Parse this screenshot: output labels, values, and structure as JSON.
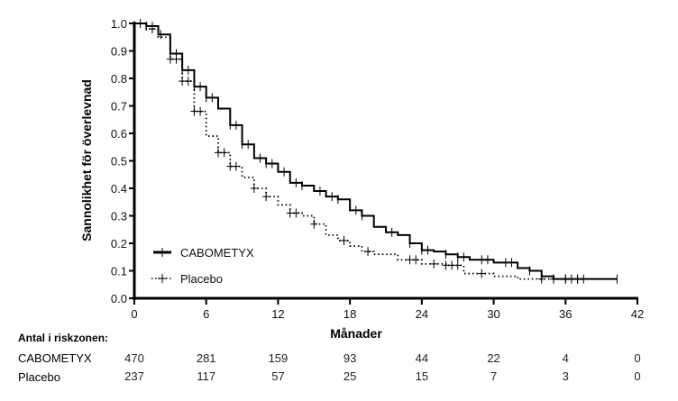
{
  "chart_data": {
    "type": "line",
    "subtype": "kaplan-meier",
    "xlabel": "Månader",
    "ylabel": "Sannolikhet för överlevnad",
    "xlim": [
      0,
      42
    ],
    "ylim": [
      0,
      1.0
    ],
    "xticks": [
      0,
      6,
      12,
      18,
      24,
      30,
      36,
      42
    ],
    "yticks": [
      "0.0",
      "0.1",
      "0.2",
      "0.3",
      "0.4",
      "0.5",
      "0.6",
      "0.7",
      "0.8",
      "0.9",
      "1.0"
    ],
    "legend_placement": "bottom-left",
    "series": [
      {
        "name": "CABOMETYX",
        "style": "solid",
        "points": [
          [
            0,
            1.0
          ],
          [
            1,
            0.99
          ],
          [
            2,
            0.96
          ],
          [
            3,
            0.89
          ],
          [
            4,
            0.83
          ],
          [
            5,
            0.77
          ],
          [
            6,
            0.73
          ],
          [
            7,
            0.69
          ],
          [
            8,
            0.63
          ],
          [
            9,
            0.56
          ],
          [
            10,
            0.51
          ],
          [
            11,
            0.49
          ],
          [
            12,
            0.46
          ],
          [
            13,
            0.42
          ],
          [
            14,
            0.41
          ],
          [
            15,
            0.39
          ],
          [
            16,
            0.37
          ],
          [
            17,
            0.36
          ],
          [
            18,
            0.32
          ],
          [
            19,
            0.3
          ],
          [
            20,
            0.26
          ],
          [
            21,
            0.24
          ],
          [
            22,
            0.23
          ],
          [
            23,
            0.2
          ],
          [
            24,
            0.175
          ],
          [
            25,
            0.17
          ],
          [
            26,
            0.16
          ],
          [
            27,
            0.15
          ],
          [
            28,
            0.14
          ],
          [
            30,
            0.13
          ],
          [
            32,
            0.11
          ],
          [
            33,
            0.1
          ],
          [
            34,
            0.08
          ],
          [
            35,
            0.07
          ],
          [
            40.3,
            0.07
          ]
        ],
        "censored": [
          0.5,
          1,
          1.5,
          2.2,
          3,
          3.5,
          4,
          4.5,
          5,
          5.5,
          6,
          6.5,
          8,
          8.5,
          9,
          9.5,
          10.5,
          11,
          11.5,
          12.5,
          13.5,
          14,
          15.5,
          16.5,
          17,
          18.5,
          19,
          21.5,
          23,
          24,
          24.5,
          26,
          27,
          27.5,
          29,
          29.5,
          31,
          31.5,
          33,
          34,
          35,
          36,
          36.5,
          37,
          40.3
        ]
      },
      {
        "name": "Placebo",
        "style": "dotted",
        "points": [
          [
            0,
            1.0
          ],
          [
            1,
            0.98
          ],
          [
            2,
            0.95
          ],
          [
            3,
            0.87
          ],
          [
            4,
            0.79
          ],
          [
            5,
            0.68
          ],
          [
            6,
            0.59
          ],
          [
            7,
            0.53
          ],
          [
            8,
            0.48
          ],
          [
            9,
            0.44
          ],
          [
            10,
            0.4
          ],
          [
            11,
            0.37
          ],
          [
            12,
            0.34
          ],
          [
            13,
            0.31
          ],
          [
            14,
            0.3
          ],
          [
            15,
            0.27
          ],
          [
            16,
            0.23
          ],
          [
            17,
            0.21
          ],
          [
            18,
            0.19
          ],
          [
            19,
            0.17
          ],
          [
            20,
            0.16
          ],
          [
            22,
            0.14
          ],
          [
            24,
            0.125
          ],
          [
            26,
            0.12
          ],
          [
            27.5,
            0.09
          ],
          [
            30,
            0.08
          ],
          [
            32,
            0.07
          ],
          [
            37.5,
            0.07
          ]
        ],
        "censored": [
          1.5,
          3,
          3.5,
          4,
          4.5,
          5,
          5.5,
          7,
          7.5,
          8,
          8.5,
          10,
          11,
          13,
          13.5,
          15,
          17.5,
          19.5,
          23,
          23.5,
          25,
          26,
          26.5,
          27,
          29,
          34,
          35,
          36,
          37,
          37.5
        ]
      }
    ],
    "risk_table": {
      "title": "Antal i riskzonen:",
      "times": [
        0,
        6,
        12,
        18,
        24,
        30,
        36,
        42
      ],
      "rows": [
        {
          "label": "CABOMETYX",
          "values": [
            "470",
            "281",
            "159",
            "93",
            "44",
            "22",
            "4",
            "0"
          ]
        },
        {
          "label": "Placebo",
          "values": [
            "237",
            "117",
            "57",
            "25",
            "15",
            "7",
            "3",
            "0"
          ]
        }
      ]
    }
  }
}
